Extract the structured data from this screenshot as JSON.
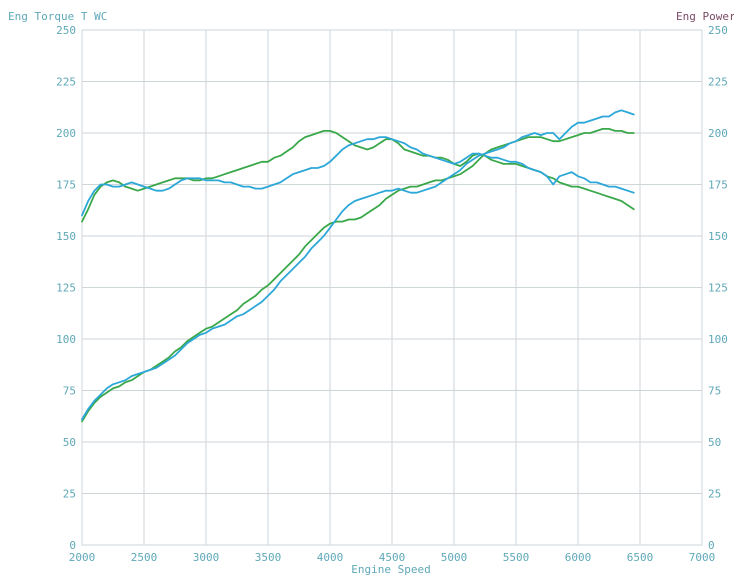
{
  "chart_data": {
    "type": "line",
    "left_axis_label": "Eng Torque T WC",
    "right_axis_label": "Eng Power",
    "xlabel": "Engine Speed",
    "xlim": [
      2000,
      7000
    ],
    "ylim": [
      0,
      250
    ],
    "right_ylim": [
      0,
      250
    ],
    "x_ticks": [
      2000,
      2500,
      3000,
      3500,
      4000,
      4500,
      5000,
      5500,
      6000,
      6500,
      7000
    ],
    "y_ticks": [
      0,
      25,
      50,
      75,
      100,
      125,
      150,
      175,
      200,
      225,
      250
    ],
    "grid": true,
    "colors": {
      "green": "#3aa84a",
      "blue": "#2ca7d8",
      "grid": "#cfd6d8",
      "tick": "#5fa8b8"
    },
    "series": [
      {
        "axis": "left",
        "color": "#3aa84a",
        "x": [
          2000,
          2050,
          2100,
          2150,
          2200,
          2250,
          2300,
          2350,
          2400,
          2450,
          2500,
          2550,
          2600,
          2650,
          2700,
          2750,
          2800,
          2850,
          2900,
          2950,
          3000,
          3050,
          3100,
          3150,
          3200,
          3250,
          3300,
          3350,
          3400,
          3450,
          3500,
          3550,
          3600,
          3650,
          3700,
          3750,
          3800,
          3850,
          3900,
          3950,
          4000,
          4050,
          4100,
          4150,
          4200,
          4250,
          4300,
          4350,
          4400,
          4450,
          4500,
          4550,
          4600,
          4650,
          4700,
          4750,
          4800,
          4850,
          4900,
          4950,
          5000,
          5050,
          5100,
          5150,
          5200,
          5250,
          5300,
          5350,
          5400,
          5450,
          5500,
          5550,
          5600,
          5650,
          5700,
          5750,
          5800,
          5850,
          5900,
          5950,
          6000,
          6050,
          6100,
          6150,
          6200,
          6250,
          6300,
          6350,
          6400,
          6450
        ],
        "values": [
          157,
          163,
          170,
          174,
          176,
          177,
          176,
          174,
          173,
          172,
          173,
          174,
          175,
          176,
          177,
          178,
          178,
          178,
          177,
          177,
          178,
          178,
          179,
          180,
          181,
          182,
          183,
          184,
          185,
          186,
          186,
          188,
          189,
          191,
          193,
          196,
          198,
          199,
          200,
          201,
          201,
          200,
          198,
          196,
          194,
          193,
          192,
          193,
          195,
          197,
          197,
          195,
          192,
          191,
          190,
          189,
          189,
          188,
          188,
          187,
          185,
          184,
          186,
          189,
          190,
          189,
          187,
          186,
          185,
          185,
          185,
          184,
          183,
          182,
          181,
          179,
          178,
          176,
          175,
          174,
          174,
          173,
          172,
          171,
          170,
          169,
          168,
          167,
          165,
          163
        ]
      },
      {
        "axis": "left",
        "color": "#2ca7d8",
        "x": [
          2000,
          2050,
          2100,
          2150,
          2200,
          2250,
          2300,
          2350,
          2400,
          2450,
          2500,
          2550,
          2600,
          2650,
          2700,
          2750,
          2800,
          2850,
          2900,
          2950,
          3000,
          3050,
          3100,
          3150,
          3200,
          3250,
          3300,
          3350,
          3400,
          3450,
          3500,
          3550,
          3600,
          3650,
          3700,
          3750,
          3800,
          3850,
          3900,
          3950,
          4000,
          4050,
          4100,
          4150,
          4200,
          4250,
          4300,
          4350,
          4400,
          4450,
          4500,
          4550,
          4600,
          4650,
          4700,
          4750,
          4800,
          4850,
          4900,
          4950,
          5000,
          5050,
          5100,
          5150,
          5200,
          5250,
          5300,
          5350,
          5400,
          5450,
          5500,
          5550,
          5600,
          5650,
          5700,
          5750,
          5800,
          5850,
          5900,
          5950,
          6000,
          6050,
          6100,
          6150,
          6200,
          6250,
          6300,
          6350,
          6400,
          6450
        ],
        "values": [
          160,
          167,
          172,
          175,
          175,
          174,
          174,
          175,
          176,
          175,
          174,
          173,
          172,
          172,
          173,
          175,
          177,
          178,
          178,
          178,
          177,
          177,
          177,
          176,
          176,
          175,
          174,
          174,
          173,
          173,
          174,
          175,
          176,
          178,
          180,
          181,
          182,
          183,
          183,
          184,
          186,
          189,
          192,
          194,
          195,
          196,
          197,
          197,
          198,
          198,
          197,
          196,
          195,
          193,
          192,
          190,
          189,
          188,
          187,
          186,
          185,
          186,
          188,
          190,
          190,
          189,
          188,
          188,
          187,
          186,
          186,
          185,
          183,
          182,
          181,
          179,
          175,
          179,
          180,
          181,
          179,
          178,
          176,
          176,
          175,
          174,
          174,
          173,
          172,
          171
        ]
      },
      {
        "axis": "right",
        "color": "#3aa84a",
        "x": [
          2000,
          2050,
          2100,
          2150,
          2200,
          2250,
          2300,
          2350,
          2400,
          2450,
          2500,
          2550,
          2600,
          2650,
          2700,
          2750,
          2800,
          2850,
          2900,
          2950,
          3000,
          3050,
          3100,
          3150,
          3200,
          3250,
          3300,
          3350,
          3400,
          3450,
          3500,
          3550,
          3600,
          3650,
          3700,
          3750,
          3800,
          3850,
          3900,
          3950,
          4000,
          4050,
          4100,
          4150,
          4200,
          4250,
          4300,
          4350,
          4400,
          4450,
          4500,
          4550,
          4600,
          4650,
          4700,
          4750,
          4800,
          4850,
          4900,
          4950,
          5000,
          5050,
          5100,
          5150,
          5200,
          5250,
          5300,
          5350,
          5400,
          5450,
          5500,
          5550,
          5600,
          5650,
          5700,
          5750,
          5800,
          5850,
          5900,
          5950,
          6000,
          6050,
          6100,
          6150,
          6200,
          6250,
          6300,
          6350,
          6400,
          6450
        ],
        "values": [
          60,
          65,
          69,
          72,
          74,
          76,
          77,
          79,
          80,
          82,
          84,
          85,
          87,
          89,
          91,
          94,
          96,
          99,
          101,
          103,
          105,
          106,
          108,
          110,
          112,
          114,
          117,
          119,
          121,
          124,
          126,
          129,
          132,
          135,
          138,
          141,
          145,
          148,
          151,
          154,
          156,
          157,
          157,
          158,
          158,
          159,
          161,
          163,
          165,
          168,
          170,
          172,
          173,
          174,
          174,
          175,
          176,
          177,
          177,
          178,
          179,
          180,
          182,
          184,
          187,
          190,
          192,
          193,
          194,
          195,
          196,
          197,
          198,
          198,
          198,
          197,
          196,
          196,
          197,
          198,
          199,
          200,
          200,
          201,
          202,
          202,
          201,
          201,
          200,
          200
        ]
      },
      {
        "axis": "right",
        "color": "#2ca7d8",
        "x": [
          2000,
          2050,
          2100,
          2150,
          2200,
          2250,
          2300,
          2350,
          2400,
          2450,
          2500,
          2550,
          2600,
          2650,
          2700,
          2750,
          2800,
          2850,
          2900,
          2950,
          3000,
          3050,
          3100,
          3150,
          3200,
          3250,
          3300,
          3350,
          3400,
          3450,
          3500,
          3550,
          3600,
          3650,
          3700,
          3750,
          3800,
          3850,
          3900,
          3950,
          4000,
          4050,
          4100,
          4150,
          4200,
          4250,
          4300,
          4350,
          4400,
          4450,
          4500,
          4550,
          4600,
          4650,
          4700,
          4750,
          4800,
          4850,
          4900,
          4950,
          5000,
          5050,
          5100,
          5150,
          5200,
          5250,
          5300,
          5350,
          5400,
          5450,
          5500,
          5550,
          5600,
          5650,
          5700,
          5750,
          5800,
          5850,
          5900,
          5950,
          6000,
          6050,
          6100,
          6150,
          6200,
          6250,
          6300,
          6350,
          6400,
          6450
        ],
        "values": [
          61,
          66,
          70,
          73,
          76,
          78,
          79,
          80,
          82,
          83,
          84,
          85,
          86,
          88,
          90,
          92,
          95,
          98,
          100,
          102,
          103,
          105,
          106,
          107,
          109,
          111,
          112,
          114,
          116,
          118,
          121,
          124,
          128,
          131,
          134,
          137,
          140,
          144,
          147,
          150,
          154,
          158,
          162,
          165,
          167,
          168,
          169,
          170,
          171,
          172,
          172,
          173,
          172,
          171,
          171,
          172,
          173,
          174,
          176,
          178,
          180,
          182,
          185,
          187,
          189,
          190,
          191,
          192,
          193,
          195,
          196,
          198,
          199,
          200,
          199,
          200,
          200,
          197,
          200,
          203,
          205,
          205,
          206,
          207,
          208,
          208,
          210,
          211,
          210,
          209
        ]
      }
    ]
  }
}
